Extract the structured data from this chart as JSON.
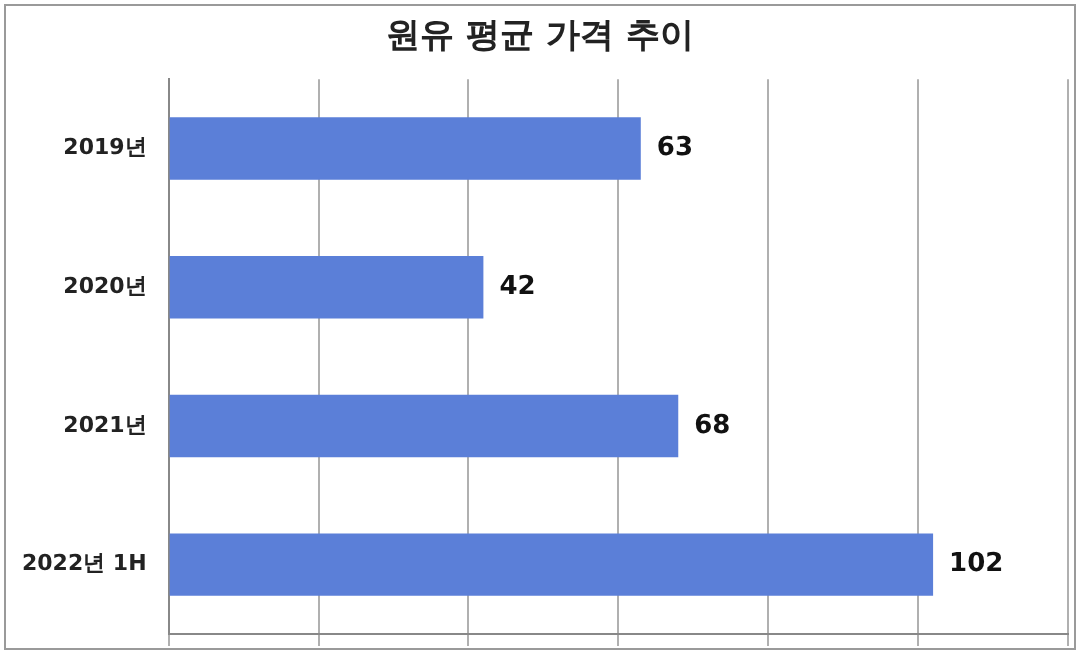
{
  "chart_data": {
    "type": "bar",
    "orientation": "horizontal",
    "title": "원유 평균 가격 추이",
    "categories": [
      "2019년",
      "2020년",
      "2021년",
      "2022년 1H"
    ],
    "values": [
      63,
      42,
      68,
      102
    ],
    "color": "#5b7fd8",
    "xlim": [
      0,
      120
    ],
    "xticks": [
      {
        "value": 0,
        "label": null
      },
      {
        "value": 20,
        "label": null
      },
      {
        "value": 40,
        "label": null
      },
      {
        "value": 60,
        "label": null
      },
      {
        "value": 80,
        "label": null
      },
      {
        "value": 100,
        "label": null
      },
      {
        "value": 120,
        "label": null
      }
    ],
    "grid": "x",
    "tick_labels": "y",
    "data_labels": true,
    "legend": false
  }
}
